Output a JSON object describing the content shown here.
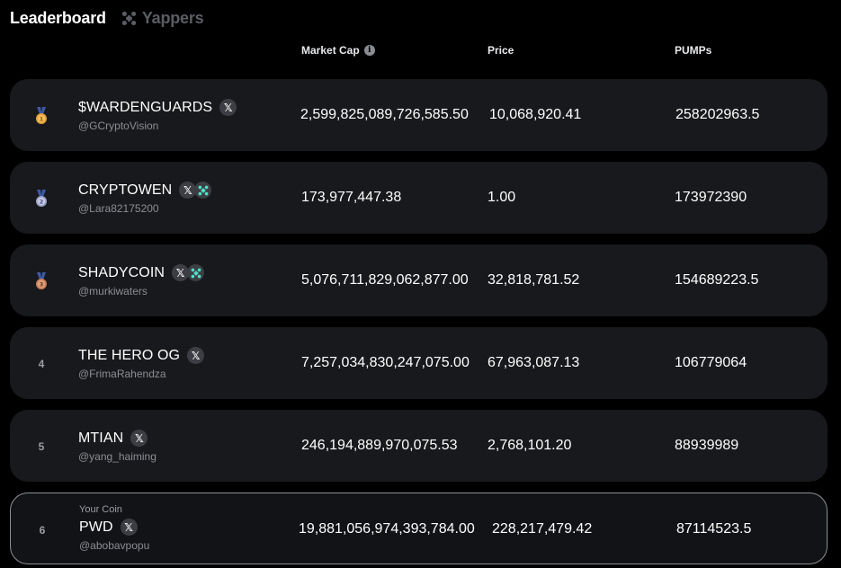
{
  "tabs": [
    {
      "label": "Leaderboard",
      "active": true
    },
    {
      "label": "Yappers",
      "active": false,
      "icon": "yappers-icon"
    }
  ],
  "columns": {
    "market_cap": "Market Cap",
    "market_cap_info_icon": "info-icon",
    "price": "Price",
    "pumps": "PUMPs"
  },
  "colors": {
    "background": "#000000",
    "row_bg": "#18191c",
    "gold": "#e3a13a",
    "silver": "#9aa3c6",
    "bronze": "#c5805a",
    "yap_accent": "#4fe0c8"
  },
  "rows": [
    {
      "rank": "1",
      "medal": "gold-medal-icon",
      "name": "$WARDENGUARDS",
      "handle": "@GCryptoVision",
      "badges": [
        "x"
      ],
      "market_cap": "2,599,825,089,726,585.50",
      "price": "10,068,920.41",
      "pumps": "258202963.5"
    },
    {
      "rank": "2",
      "medal": "silver-medal-icon",
      "name": "CRYPTOWEN",
      "handle": "@Lara82175200",
      "badges": [
        "x",
        "yap"
      ],
      "market_cap": "173,977,447.38",
      "price": "1.00",
      "pumps": "173972390"
    },
    {
      "rank": "3",
      "medal": "bronze-medal-icon",
      "name": "SHADYCOIN",
      "handle": "@murkiwaters",
      "badges": [
        "x",
        "yap"
      ],
      "market_cap": "5,076,711,829,062,877.00",
      "price": "32,818,781.52",
      "pumps": "154689223.5"
    },
    {
      "rank": "4",
      "name": "THE HERO OG",
      "handle": "@FrimaRahendza",
      "badges": [
        "x"
      ],
      "market_cap": "7,257,034,830,247,075.00",
      "price": "67,963,087.13",
      "pumps": "106779064"
    },
    {
      "rank": "5",
      "name": "MTIAN",
      "handle": "@yang_haiming",
      "badges": [
        "x"
      ],
      "market_cap": "246,194,889,970,075.53",
      "price": "2,768,101.20",
      "pumps": "88939989"
    },
    {
      "rank": "6",
      "your_coin_label": "Your Coin",
      "name": "PWD",
      "handle": "@abobavpopu",
      "badges": [
        "x"
      ],
      "market_cap": "19,881,056,974,393,784.00",
      "price": "228,217,479.42",
      "pumps": "87114523.5"
    }
  ]
}
